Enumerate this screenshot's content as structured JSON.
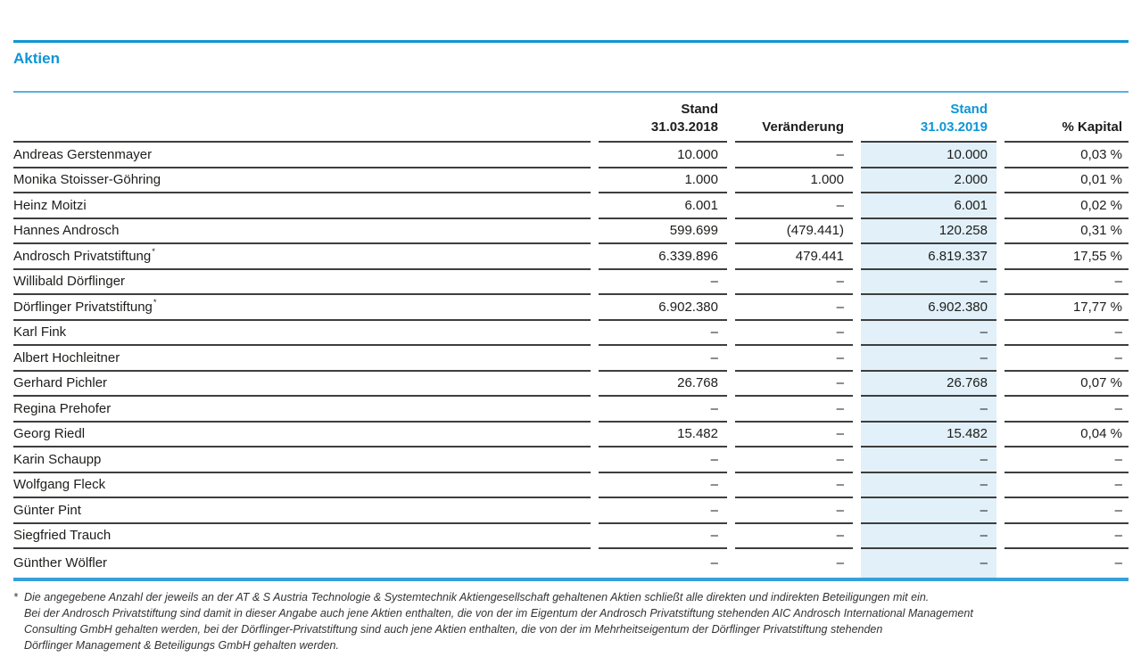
{
  "colors": {
    "accent": "#0e95d6",
    "rulelight": "#58b1e1",
    "rulebottom": "#35a1da",
    "line": "#3e3e3e",
    "highlight": "#e1f0f9",
    "text": "#1d1d1b",
    "fntext": "#333333"
  },
  "section": {
    "title": "Aktien"
  },
  "table": {
    "header": {
      "col2_line1": "Stand",
      "col2_line2": "31.03.2018",
      "col3": "Veränderung",
      "col4_line1": "Stand",
      "col4_line2": "31.03.2019",
      "col5": "% Kapital"
    },
    "rows": [
      {
        "name": "Andreas Gerstenmayer",
        "sup": "",
        "stand_2018": "10.000",
        "veraenderung": "–",
        "stand_2019": "10.000",
        "pct_kapital": "0,03 %"
      },
      {
        "name": "Monika Stoisser-Göhring",
        "sup": "",
        "stand_2018": "1.000",
        "veraenderung": "1.000",
        "stand_2019": "2.000",
        "pct_kapital": "0,01 %"
      },
      {
        "name": "Heinz Moitzi",
        "sup": "",
        "stand_2018": "6.001",
        "veraenderung": "–",
        "stand_2019": "6.001",
        "pct_kapital": "0,02 %"
      },
      {
        "name": "Hannes Androsch",
        "sup": "",
        "stand_2018": "599.699",
        "veraenderung": "(479.441)",
        "stand_2019": "120.258",
        "pct_kapital": "0,31 %"
      },
      {
        "name": "Androsch Privatstiftung",
        "sup": "*",
        "stand_2018": "6.339.896",
        "veraenderung": "479.441",
        "stand_2019": "6.819.337",
        "pct_kapital": "17,55 %"
      },
      {
        "name": "Willibald Dörflinger",
        "sup": "",
        "stand_2018": "–",
        "veraenderung": "–",
        "stand_2019": "–",
        "pct_kapital": "–"
      },
      {
        "name": "Dörflinger Privatstiftung",
        "sup": "*",
        "stand_2018": "6.902.380",
        "veraenderung": "–",
        "stand_2019": "6.902.380",
        "pct_kapital": "17,77 %"
      },
      {
        "name": "Karl Fink",
        "sup": "",
        "stand_2018": "–",
        "veraenderung": "–",
        "stand_2019": "–",
        "pct_kapital": "–"
      },
      {
        "name": "Albert Hochleitner",
        "sup": "",
        "stand_2018": "–",
        "veraenderung": "–",
        "stand_2019": "–",
        "pct_kapital": "–"
      },
      {
        "name": "Gerhard Pichler",
        "sup": "",
        "stand_2018": "26.768",
        "veraenderung": "–",
        "stand_2019": "26.768",
        "pct_kapital": "0,07 %"
      },
      {
        "name": "Regina Prehofer",
        "sup": "",
        "stand_2018": "–",
        "veraenderung": "–",
        "stand_2019": "–",
        "pct_kapital": "–"
      },
      {
        "name": "Georg Riedl",
        "sup": "",
        "stand_2018": "15.482",
        "veraenderung": "–",
        "stand_2019": "15.482",
        "pct_kapital": "0,04 %"
      },
      {
        "name": "Karin Schaupp",
        "sup": "",
        "stand_2018": "–",
        "veraenderung": "–",
        "stand_2019": "–",
        "pct_kapital": "–"
      },
      {
        "name": "Wolfgang Fleck",
        "sup": "",
        "stand_2018": "–",
        "veraenderung": "–",
        "stand_2019": "–",
        "pct_kapital": "–"
      },
      {
        "name": "Günter Pint",
        "sup": "",
        "stand_2018": "–",
        "veraenderung": "–",
        "stand_2019": "–",
        "pct_kapital": "–"
      },
      {
        "name": "Siegfried Trauch",
        "sup": "",
        "stand_2018": "–",
        "veraenderung": "–",
        "stand_2019": "–",
        "pct_kapital": "–"
      },
      {
        "name": "Günther Wölfler",
        "sup": "",
        "stand_2018": "–",
        "veraenderung": "–",
        "stand_2019": "–",
        "pct_kapital": "–"
      }
    ]
  },
  "footnote": {
    "marker": "*",
    "lines": [
      "Die angegebene Anzahl der jeweils an der AT & S Austria Technologie & Systemtechnik Aktiengesellschaft gehaltenen Aktien schließt alle direkten und indirekten Beteiligungen mit ein.",
      "Bei der Androsch Privatstiftung sind damit in dieser Angabe auch jene Aktien enthalten, die von der im Eigentum der Androsch Privatstiftung stehenden AIC Androsch International Management",
      "Consulting GmbH gehalten werden, bei der Dörflinger-Privatstiftung sind auch jene Aktien enthalten, die von der im Mehrheitseigentum der Dörflinger Privatstiftung stehenden",
      "Dörflinger Management & Beteiligungs GmbH gehalten werden."
    ]
  }
}
